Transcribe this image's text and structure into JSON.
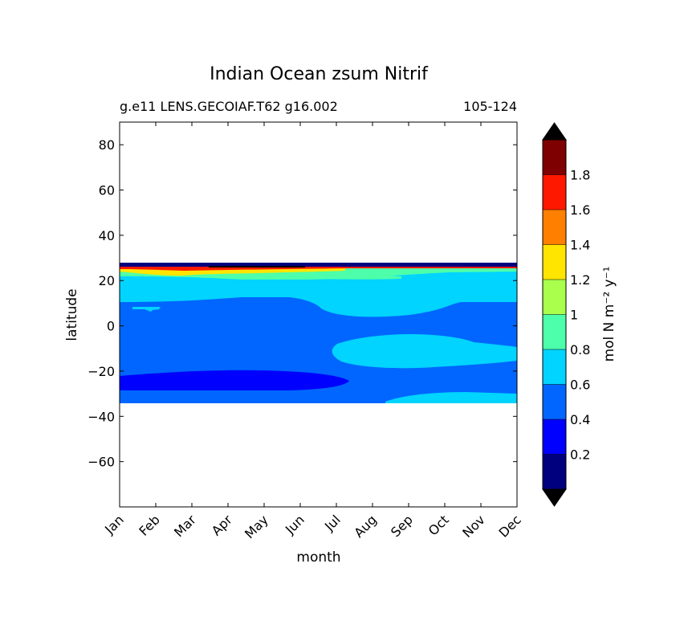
{
  "chart_data": {
    "type": "contour",
    "title": "Indian Ocean zsum Nitrif",
    "subtitle_left": "g.e11 LENS.GECOIAF.T62 g16.002",
    "subtitle_right": "105-124",
    "xlabel": "month",
    "ylabel": "latitude",
    "x_categories": [
      "Jan",
      "Feb",
      "Mar",
      "Apr",
      "May",
      "Jun",
      "Jul",
      "Aug",
      "Sep",
      "Oct",
      "Nov",
      "Dec"
    ],
    "ylim": [
      -80,
      90
    ],
    "yticks": [
      80,
      60,
      40,
      20,
      0,
      -20,
      -40,
      -60
    ],
    "ytick_labels": [
      "80",
      "60",
      "40",
      "20",
      "0",
      "−20",
      "−40",
      "−60"
    ],
    "colorbar": {
      "label": "mol N m⁻² y⁻¹",
      "levels": [
        0,
        0.2,
        0.4,
        0.6,
        0.8,
        1.0,
        1.2,
        1.4,
        1.6,
        1.8,
        2.0
      ],
      "tick_values": [
        0.2,
        0.4,
        0.6,
        0.8,
        1.0,
        1.2,
        1.4,
        1.6,
        1.8
      ],
      "tick_labels": [
        "0.2",
        "0.4",
        "0.6",
        "0.8",
        "1",
        "1.2",
        "1.4",
        "1.6",
        "1.8"
      ],
      "colors": [
        "#00007f",
        "#0000ff",
        "#0066ff",
        "#00d4ff",
        "#4dffaa",
        "#aaff4d",
        "#ffe500",
        "#ff7f00",
        "#ff1800",
        "#7f0000"
      ],
      "under_color": "#000000",
      "over_color": "#000000",
      "extend": "both"
    },
    "fields": [
      {
        "name": "band 0.4-0.6",
        "level_index": 2,
        "lat_range": [
          -34,
          27
        ],
        "months": "Jan-Dec"
      },
      {
        "name": "band 0.6-0.8",
        "level_index": 3,
        "lat_range": [
          11,
          25
        ],
        "months": "Jan-Dec"
      },
      {
        "name": "patch 0.6-0.8 north",
        "level_index": 3,
        "lat_range": [
          4,
          11
        ],
        "months": "Aug-Oct"
      },
      {
        "name": "patch 0.6-0.8 equatorial",
        "level_index": 3,
        "lat_range": [
          -19,
          -4
        ],
        "months": "Aug-Dec"
      },
      {
        "name": "band 0.6-0.8 south",
        "level_index": 3,
        "lat_range": [
          -34,
          -29
        ],
        "months": "Aug-Dec"
      },
      {
        "name": "band 0.2-0.4 south",
        "level_index": 1,
        "lat_range": [
          -28,
          -19
        ],
        "months": "Jan-Jul"
      },
      {
        "name": "band 0.8-1.0 north edge",
        "level_index": 4,
        "lat_range": [
          20,
          25
        ],
        "months": "Jan-Dec"
      },
      {
        "name": "band 1.2-1.4 north edge",
        "level_index": 6,
        "lat_range": [
          24,
          26
        ],
        "months": "Jan-Jul"
      },
      {
        "name": "band 0-0.2 top edge",
        "level_index": 0,
        "lat_range": [
          26,
          27.5
        ],
        "months": "Jan-Dec"
      }
    ]
  }
}
